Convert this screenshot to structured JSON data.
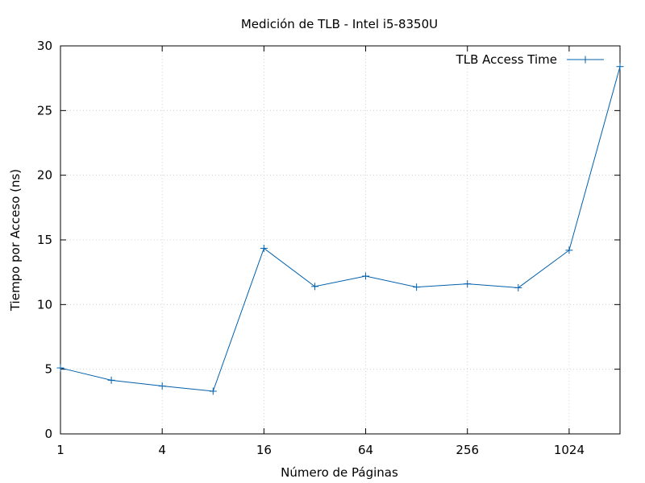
{
  "chart_data": {
    "type": "line",
    "title": "Medición de TLB - Intel i5-8350U",
    "xlabel": "Número de Páginas",
    "ylabel": "Tiempo por Acceso (ns)",
    "x_scale": "log2",
    "xlim": [
      1,
      2048
    ],
    "ylim": [
      0,
      30
    ],
    "x_ticks": [
      1,
      4,
      16,
      64,
      256,
      1024
    ],
    "x_tick_labels": [
      "1",
      "4",
      "16",
      "64",
      "256",
      "1024"
    ],
    "y_ticks": [
      0,
      5,
      10,
      15,
      20,
      25,
      30
    ],
    "y_tick_labels": [
      "0",
      "5",
      "10",
      "15",
      "20",
      "25",
      "30"
    ],
    "grid": true,
    "legend_position": "top-right",
    "series": [
      {
        "name": "TLB Access Time",
        "color": "#0060ad",
        "marker": "plus",
        "x": [
          1,
          2,
          4,
          8,
          16,
          32,
          64,
          128,
          256,
          512,
          1024,
          2048
        ],
        "y": [
          5.1,
          4.15,
          3.7,
          3.3,
          14.35,
          11.4,
          12.2,
          11.35,
          11.6,
          11.3,
          14.2,
          28.4
        ]
      }
    ]
  }
}
